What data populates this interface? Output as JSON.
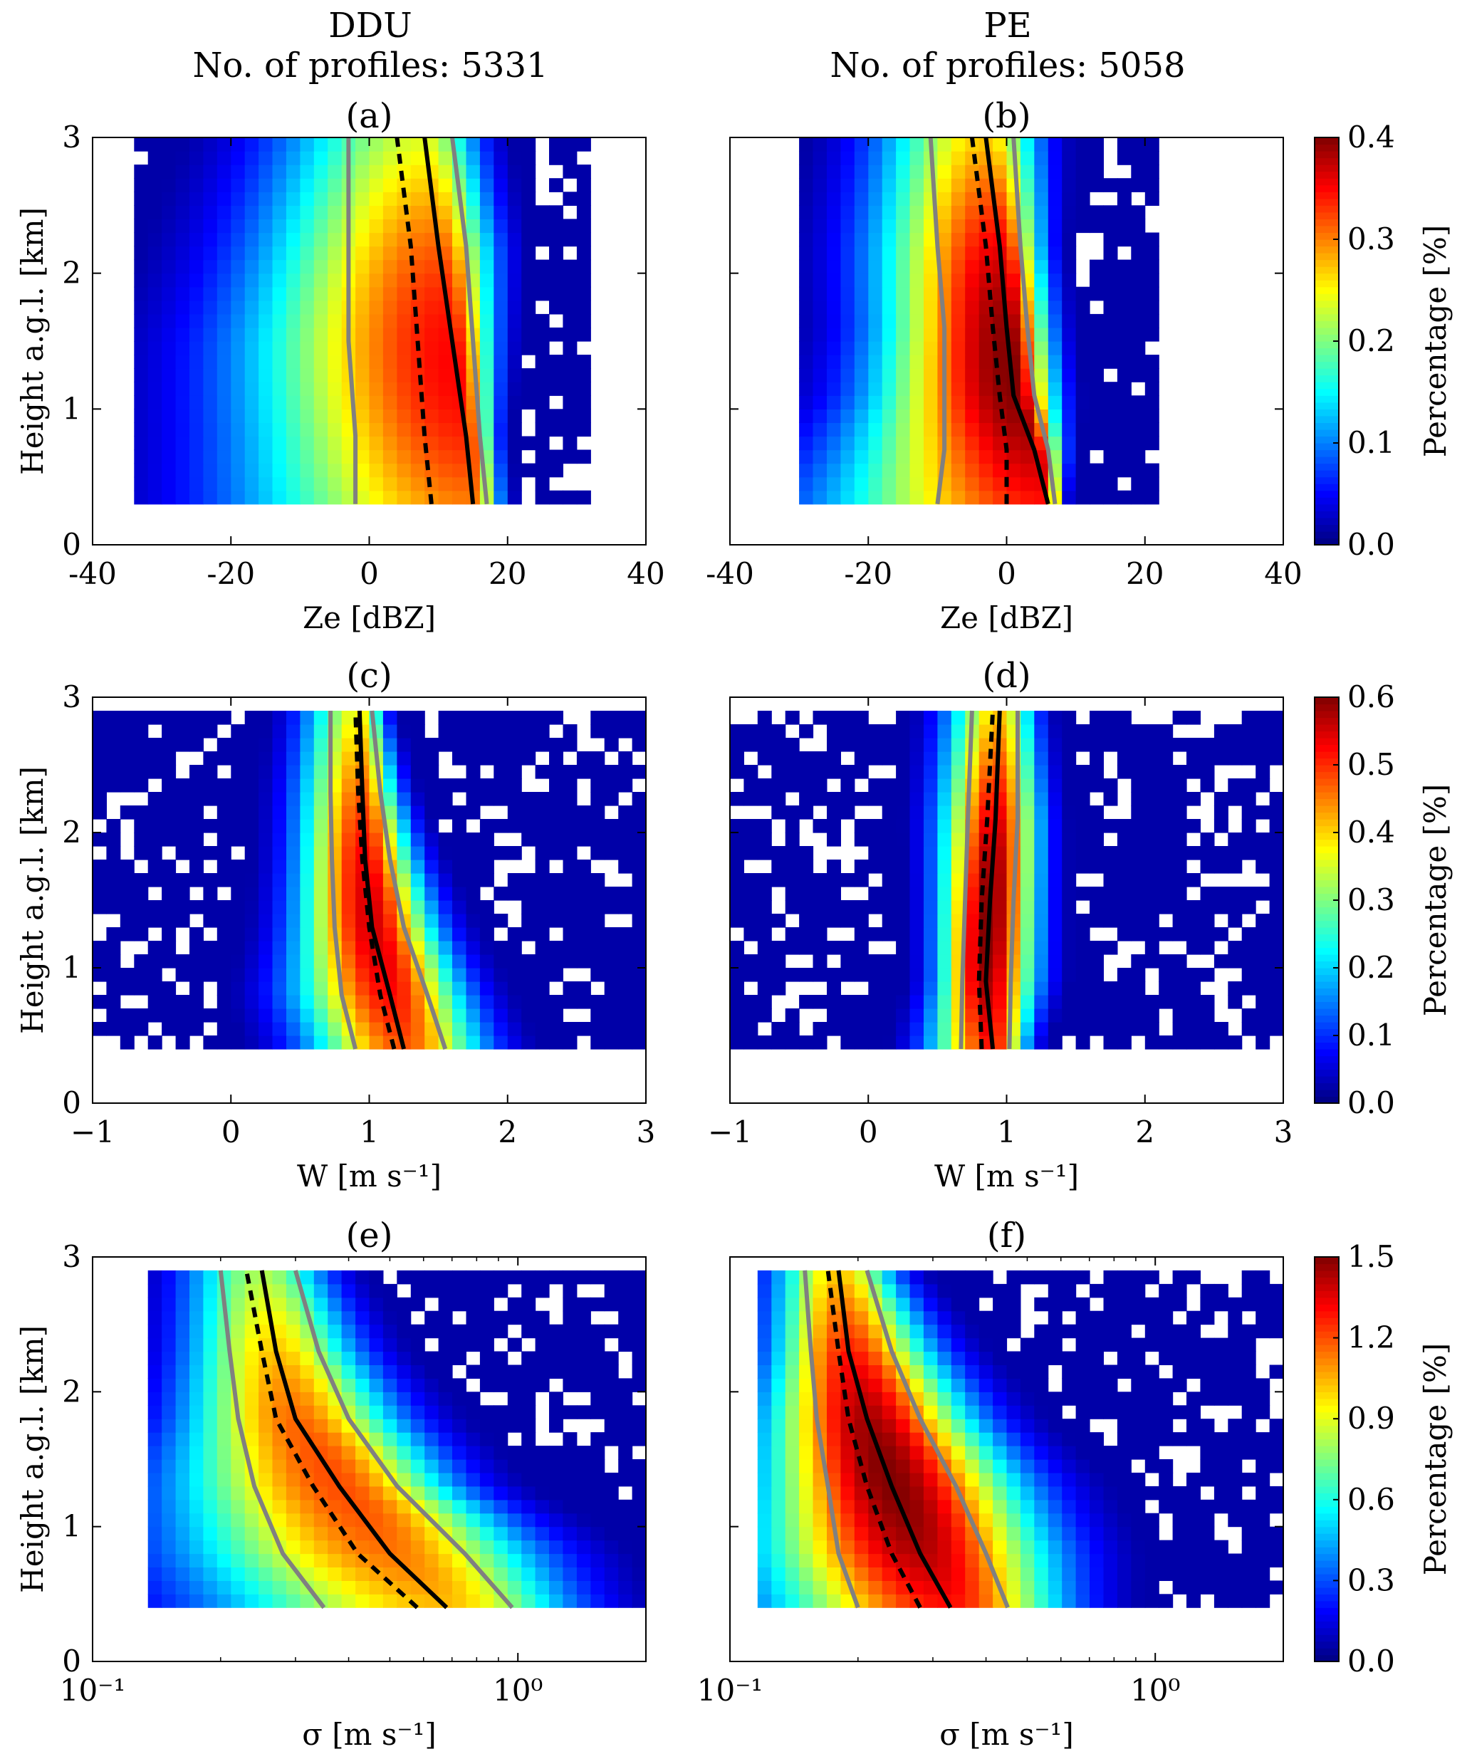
{
  "columns": [
    {
      "station": "DDU",
      "profiles_label": "No. of profiles: 5331"
    },
    {
      "station": "PE",
      "profiles_label": "No. of profiles: 5058"
    }
  ],
  "colormap": "jet",
  "line_styles": {
    "median": "black solid",
    "mean": "black dashed",
    "percentiles": "grey solid"
  },
  "chart_data": [
    {
      "type": "heatmap",
      "panel": "(a)",
      "station": "DDU",
      "xlabel": "Ze [dBZ]",
      "ylabel": "Height a.g.l. [km]",
      "xlim": [
        -40,
        40
      ],
      "ylim": [
        0,
        3
      ],
      "xscale": "linear",
      "xticks": [
        "-40",
        "-20",
        "0",
        "20",
        "40"
      ],
      "yticks": [
        "0",
        "1",
        "2",
        "3"
      ],
      "colorbar": {
        "label": "Percentage [%]",
        "range": [
          0,
          0.4
        ],
        "ticks": [
          "0.0",
          "0.1",
          "0.2",
          "0.3",
          "0.4"
        ]
      },
      "data_height_range": [
        0.3,
        3.0
      ],
      "x_extent": [
        -33,
        31
      ],
      "peak": {
        "value": 0.35
      },
      "heights": [
        0.3,
        0.8,
        1.5,
        2.2,
        3.0
      ],
      "median": [
        15,
        14,
        12,
        10,
        8
      ],
      "mean": [
        9,
        8,
        7,
        6,
        4
      ],
      "p_low": [
        -2,
        -2,
        -3,
        -3,
        -3
      ],
      "p_high": [
        17,
        16,
        15,
        14,
        12
      ]
    },
    {
      "type": "heatmap",
      "panel": "(b)",
      "station": "PE",
      "xlabel": "Ze [dBZ]",
      "ylabel": "",
      "xlim": [
        -40,
        40
      ],
      "ylim": [
        0,
        3
      ],
      "xscale": "linear",
      "xticks": [
        "-40",
        "-20",
        "0",
        "20",
        "40"
      ],
      "yticks": [],
      "colorbar": {
        "label": "Percentage [%]",
        "range": [
          0,
          0.4
        ],
        "ticks": [
          "0.0",
          "0.1",
          "0.2",
          "0.3",
          "0.4"
        ]
      },
      "data_height_range": [
        0.3,
        3.0
      ],
      "x_extent": [
        -29,
        22
      ],
      "peak": {
        "value": 0.4
      },
      "heights": [
        0.3,
        0.7,
        1.1,
        1.6,
        2.2,
        3.0
      ],
      "median": [
        6,
        4,
        1,
        0,
        -1,
        -3
      ],
      "mean": [
        0,
        0,
        -1,
        -2,
        -3,
        -5
      ],
      "p_low": [
        -10,
        -9,
        -9,
        -9,
        -10,
        -11
      ],
      "p_high": [
        7,
        6,
        4,
        3,
        2,
        1
      ]
    },
    {
      "type": "heatmap",
      "panel": "(c)",
      "station": "DDU",
      "xlabel": "W [m s⁻¹]",
      "ylabel": "Height a.g.l. [km]",
      "xlim": [
        -1,
        3
      ],
      "ylim": [
        0,
        3
      ],
      "xscale": "linear",
      "xticks": [
        "−1",
        "0",
        "1",
        "2",
        "3"
      ],
      "yticks": [
        "0",
        "1",
        "2",
        "3"
      ],
      "colorbar": {
        "label": "Percentage [%]",
        "range": [
          0,
          0.6
        ],
        "ticks": [
          "0.0",
          "0.1",
          "0.2",
          "0.3",
          "0.4",
          "0.5",
          "0.6"
        ]
      },
      "data_height_range": [
        0.4,
        2.9
      ],
      "x_extent": [
        -1.0,
        3.0
      ],
      "peak": {
        "value": 0.55
      },
      "heights": [
        0.4,
        0.8,
        1.3,
        1.8,
        2.3,
        2.9
      ],
      "median": [
        1.25,
        1.15,
        1.02,
        0.97,
        0.95,
        0.93
      ],
      "mean": [
        1.18,
        1.08,
        1.0,
        0.95,
        0.92,
        0.9
      ],
      "p_low": [
        0.9,
        0.8,
        0.75,
        0.73,
        0.72,
        0.72
      ],
      "p_high": [
        1.55,
        1.42,
        1.25,
        1.15,
        1.08,
        1.02
      ]
    },
    {
      "type": "heatmap",
      "panel": "(d)",
      "station": "PE",
      "xlabel": "W [m s⁻¹]",
      "ylabel": "",
      "xlim": [
        -1,
        3
      ],
      "ylim": [
        0,
        3
      ],
      "xscale": "linear",
      "xticks": [
        "−1",
        "0",
        "1",
        "2",
        "3"
      ],
      "yticks": [],
      "colorbar": {
        "label": "Percentage [%]",
        "range": [
          0,
          0.6
        ],
        "ticks": [
          "0.0",
          "0.1",
          "0.2",
          "0.3",
          "0.4",
          "0.5",
          "0.6"
        ]
      },
      "data_height_range": [
        0.4,
        2.9
      ],
      "x_extent": [
        -1.0,
        3.0
      ],
      "peak": {
        "value": 0.6
      },
      "heights": [
        0.4,
        0.9,
        1.5,
        2.1,
        2.9
      ],
      "median": [
        0.9,
        0.85,
        0.88,
        0.92,
        0.95
      ],
      "mean": [
        0.82,
        0.8,
        0.82,
        0.86,
        0.9
      ],
      "p_low": [
        0.67,
        0.68,
        0.7,
        0.72,
        0.75
      ],
      "p_high": [
        1.02,
        1.03,
        1.05,
        1.08,
        1.08
      ]
    },
    {
      "type": "heatmap",
      "panel": "(e)",
      "station": "DDU",
      "xlabel": "σ [m s⁻¹]",
      "ylabel": "Height a.g.l. [km]",
      "xlim": [
        0.1,
        2
      ],
      "ylim": [
        0,
        3
      ],
      "xscale": "log",
      "xticks": [
        "10⁻¹",
        "10⁰"
      ],
      "yticks": [
        "0",
        "1",
        "2",
        "3"
      ],
      "colorbar": {
        "label": "Percentage [%]",
        "range": [
          0,
          1.5
        ],
        "ticks": [
          "0.0",
          "0.3",
          "0.6",
          "0.9",
          "1.2",
          "1.5"
        ]
      },
      "data_height_range": [
        0.4,
        2.9
      ],
      "x_extent": [
        0.13,
        2.0
      ],
      "peak": {
        "value": 1.2
      },
      "heights": [
        0.4,
        0.8,
        1.3,
        1.8,
        2.3,
        2.9
      ],
      "median": [
        0.68,
        0.5,
        0.38,
        0.3,
        0.27,
        0.25
      ],
      "mean": [
        0.58,
        0.42,
        0.33,
        0.27,
        0.25,
        0.23
      ],
      "p_low": [
        0.35,
        0.28,
        0.24,
        0.22,
        0.21,
        0.2
      ],
      "p_high": [
        0.97,
        0.75,
        0.52,
        0.4,
        0.34,
        0.3
      ]
    },
    {
      "type": "heatmap",
      "panel": "(f)",
      "station": "PE",
      "xlabel": "σ [m s⁻¹]",
      "ylabel": "",
      "xlim": [
        0.1,
        2
      ],
      "ylim": [
        0,
        3
      ],
      "xscale": "log",
      "xticks": [
        "10⁻¹",
        "10⁰"
      ],
      "yticks": [],
      "colorbar": {
        "label": "Percentage [%]",
        "range": [
          0,
          1.5
        ],
        "ticks": [
          "0.0",
          "0.3",
          "0.6",
          "0.9",
          "1.2",
          "1.5"
        ]
      },
      "data_height_range": [
        0.4,
        2.9
      ],
      "x_extent": [
        0.12,
        2.0
      ],
      "peak": {
        "value": 1.5
      },
      "heights": [
        0.4,
        0.8,
        1.3,
        1.8,
        2.3,
        2.9
      ],
      "median": [
        0.33,
        0.28,
        0.24,
        0.21,
        0.19,
        0.18
      ],
      "mean": [
        0.28,
        0.24,
        0.21,
        0.19,
        0.18,
        0.17
      ],
      "p_low": [
        0.2,
        0.18,
        0.17,
        0.16,
        0.155,
        0.15
      ],
      "p_high": [
        0.45,
        0.4,
        0.34,
        0.28,
        0.24,
        0.21
      ]
    }
  ]
}
